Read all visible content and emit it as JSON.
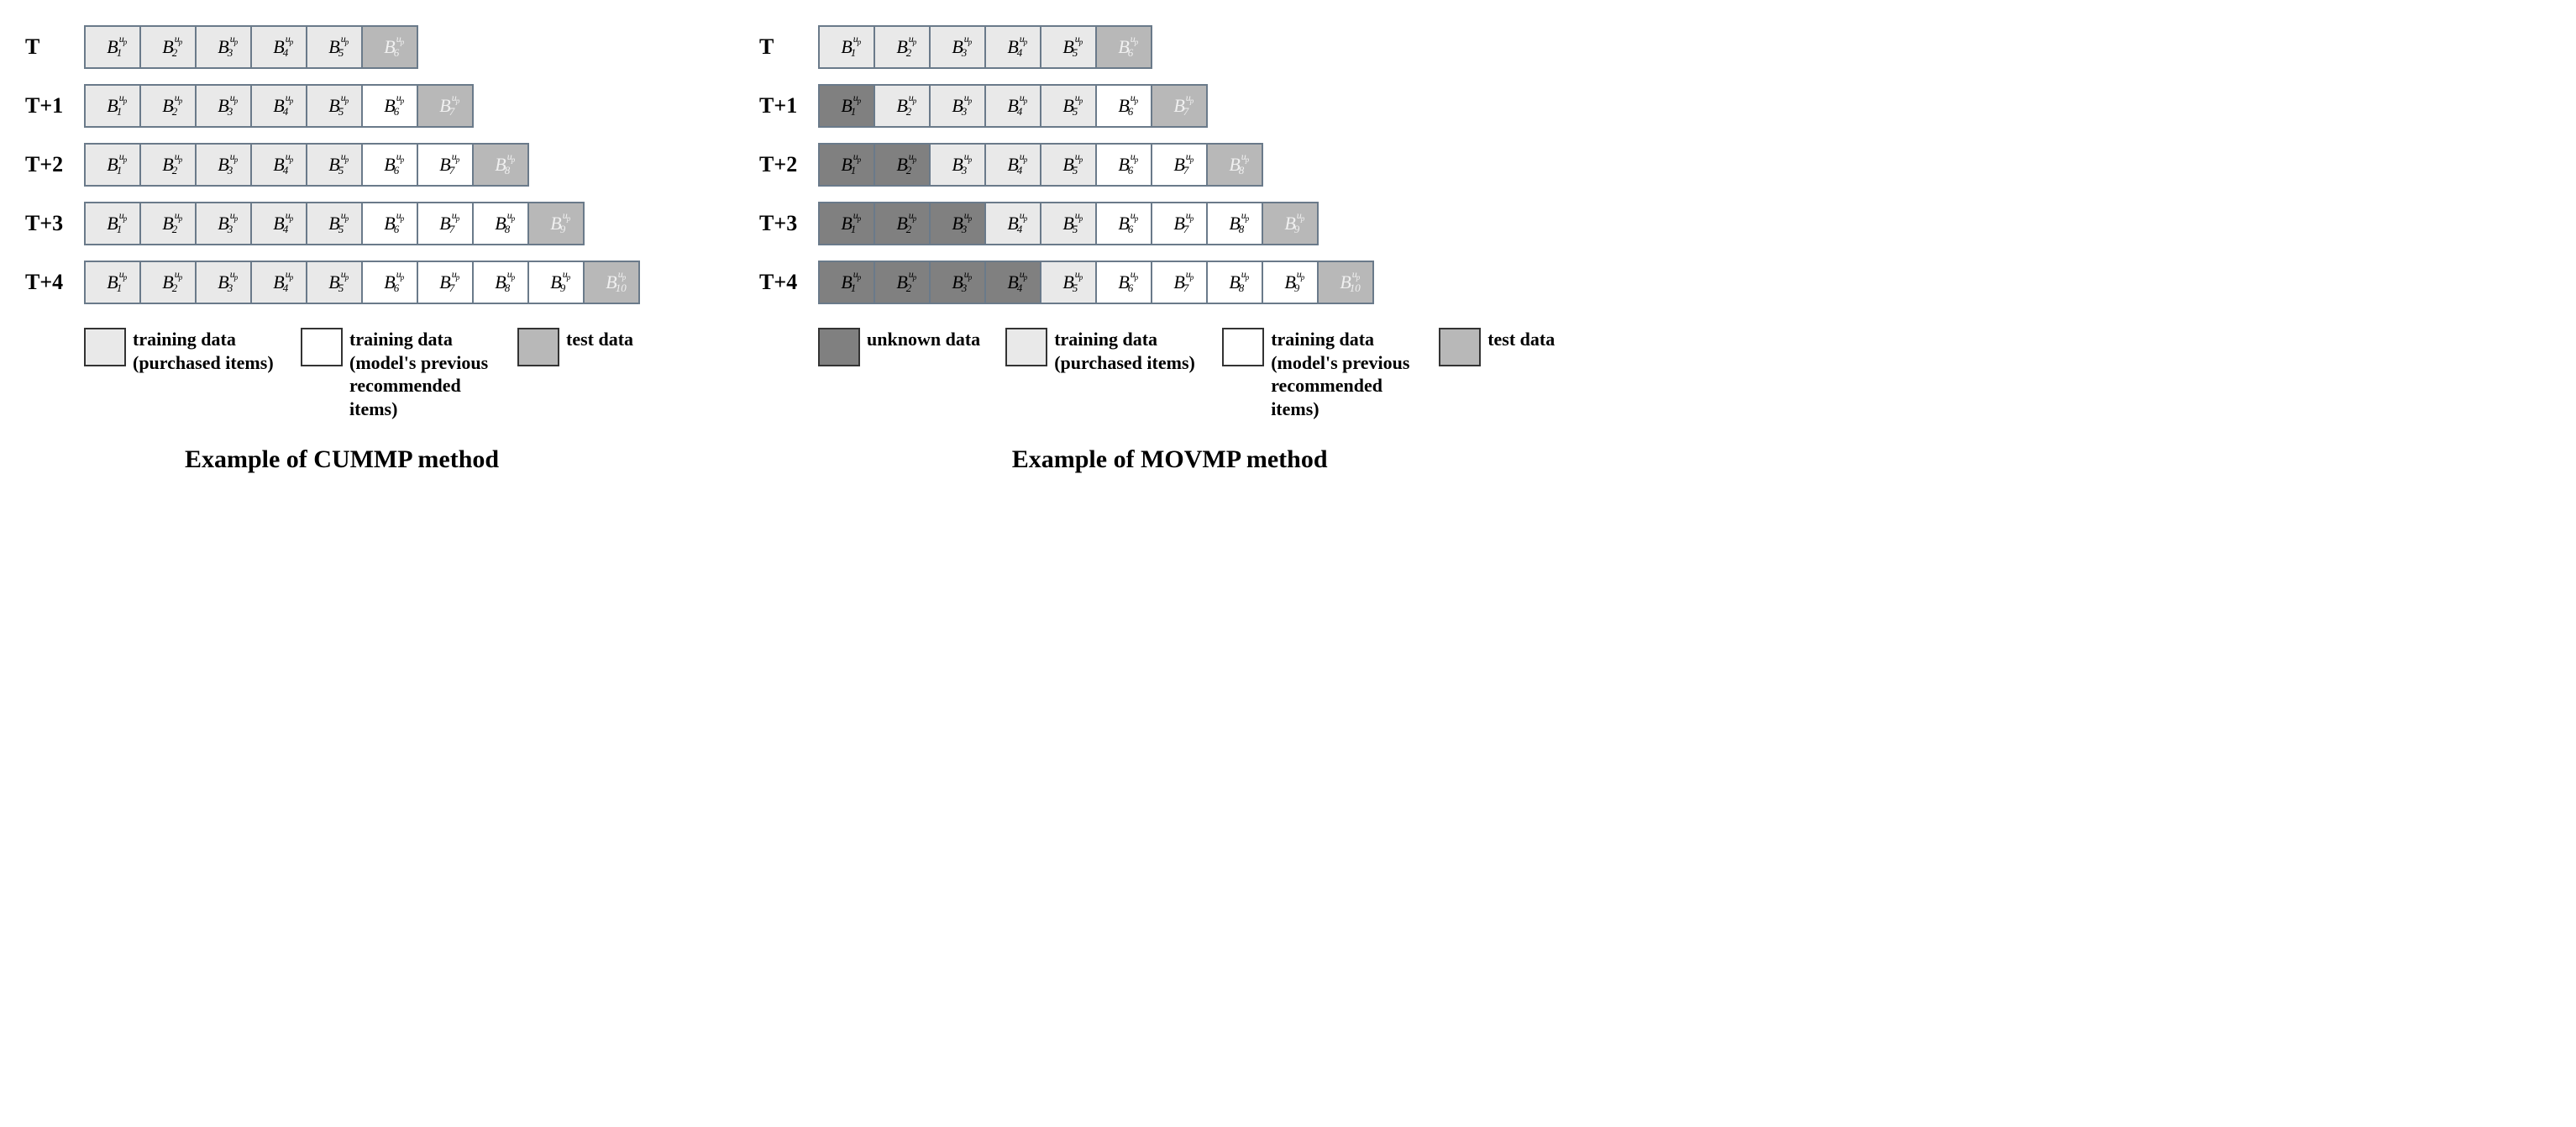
{
  "superscript": "u_p",
  "colors": {
    "purchased": "#e9e9e9",
    "recommended": "#ffffff",
    "test": "#b8b8b8",
    "unknown": "#808080",
    "border": "#6a7a8a",
    "legend_border": "#333333",
    "text_dark": "#000000",
    "text_light": "#f0f0f0"
  },
  "row_labels": [
    "T",
    "T+1",
    "T+2",
    "T+3",
    "T+4"
  ],
  "cummp": {
    "title": "Example of CUMMP method",
    "rows": [
      {
        "cells": [
          {
            "sub": "1",
            "type": "purchased"
          },
          {
            "sub": "2",
            "type": "purchased"
          },
          {
            "sub": "3",
            "type": "purchased"
          },
          {
            "sub": "4",
            "type": "purchased"
          },
          {
            "sub": "5",
            "type": "purchased"
          },
          {
            "sub": "6",
            "type": "test"
          }
        ]
      },
      {
        "cells": [
          {
            "sub": "1",
            "type": "purchased"
          },
          {
            "sub": "2",
            "type": "purchased"
          },
          {
            "sub": "3",
            "type": "purchased"
          },
          {
            "sub": "4",
            "type": "purchased"
          },
          {
            "sub": "5",
            "type": "purchased"
          },
          {
            "sub": "6",
            "type": "recommended"
          },
          {
            "sub": "7",
            "type": "test"
          }
        ]
      },
      {
        "cells": [
          {
            "sub": "1",
            "type": "purchased"
          },
          {
            "sub": "2",
            "type": "purchased"
          },
          {
            "sub": "3",
            "type": "purchased"
          },
          {
            "sub": "4",
            "type": "purchased"
          },
          {
            "sub": "5",
            "type": "purchased"
          },
          {
            "sub": "6",
            "type": "recommended"
          },
          {
            "sub": "7",
            "type": "recommended"
          },
          {
            "sub": "8",
            "type": "test"
          }
        ]
      },
      {
        "cells": [
          {
            "sub": "1",
            "type": "purchased"
          },
          {
            "sub": "2",
            "type": "purchased"
          },
          {
            "sub": "3",
            "type": "purchased"
          },
          {
            "sub": "4",
            "type": "purchased"
          },
          {
            "sub": "5",
            "type": "purchased"
          },
          {
            "sub": "6",
            "type": "recommended"
          },
          {
            "sub": "7",
            "type": "recommended"
          },
          {
            "sub": "8",
            "type": "recommended"
          },
          {
            "sub": "9",
            "type": "test"
          }
        ]
      },
      {
        "cells": [
          {
            "sub": "1",
            "type": "purchased"
          },
          {
            "sub": "2",
            "type": "purchased"
          },
          {
            "sub": "3",
            "type": "purchased"
          },
          {
            "sub": "4",
            "type": "purchased"
          },
          {
            "sub": "5",
            "type": "purchased"
          },
          {
            "sub": "6",
            "type": "recommended"
          },
          {
            "sub": "7",
            "type": "recommended"
          },
          {
            "sub": "8",
            "type": "recommended"
          },
          {
            "sub": "9",
            "type": "recommended"
          },
          {
            "sub": "10",
            "type": "test"
          }
        ]
      }
    ],
    "legend": [
      {
        "type": "purchased",
        "label": "training data (purchased items)"
      },
      {
        "type": "recommended",
        "label": "training data (model's previous recommended items)"
      },
      {
        "type": "test",
        "label": "test data"
      }
    ]
  },
  "movmp": {
    "title": "Example of MOVMP method",
    "rows": [
      {
        "cells": [
          {
            "sub": "1",
            "type": "purchased"
          },
          {
            "sub": "2",
            "type": "purchased"
          },
          {
            "sub": "3",
            "type": "purchased"
          },
          {
            "sub": "4",
            "type": "purchased"
          },
          {
            "sub": "5",
            "type": "purchased"
          },
          {
            "sub": "6",
            "type": "test"
          }
        ]
      },
      {
        "cells": [
          {
            "sub": "1",
            "type": "unknown"
          },
          {
            "sub": "2",
            "type": "purchased"
          },
          {
            "sub": "3",
            "type": "purchased"
          },
          {
            "sub": "4",
            "type": "purchased"
          },
          {
            "sub": "5",
            "type": "purchased"
          },
          {
            "sub": "6",
            "type": "recommended"
          },
          {
            "sub": "7",
            "type": "test"
          }
        ]
      },
      {
        "cells": [
          {
            "sub": "1",
            "type": "unknown"
          },
          {
            "sub": "2",
            "type": "unknown"
          },
          {
            "sub": "3",
            "type": "purchased"
          },
          {
            "sub": "4",
            "type": "purchased"
          },
          {
            "sub": "5",
            "type": "purchased"
          },
          {
            "sub": "6",
            "type": "recommended"
          },
          {
            "sub": "7",
            "type": "recommended"
          },
          {
            "sub": "8",
            "type": "test"
          }
        ]
      },
      {
        "cells": [
          {
            "sub": "1",
            "type": "unknown"
          },
          {
            "sub": "2",
            "type": "unknown"
          },
          {
            "sub": "3",
            "type": "unknown"
          },
          {
            "sub": "4",
            "type": "purchased"
          },
          {
            "sub": "5",
            "type": "purchased"
          },
          {
            "sub": "6",
            "type": "recommended"
          },
          {
            "sub": "7",
            "type": "recommended"
          },
          {
            "sub": "8",
            "type": "recommended"
          },
          {
            "sub": "9",
            "type": "test"
          }
        ]
      },
      {
        "cells": [
          {
            "sub": "1",
            "type": "unknown"
          },
          {
            "sub": "2",
            "type": "unknown"
          },
          {
            "sub": "3",
            "type": "unknown"
          },
          {
            "sub": "4",
            "type": "unknown"
          },
          {
            "sub": "5",
            "type": "purchased"
          },
          {
            "sub": "6",
            "type": "recommended"
          },
          {
            "sub": "7",
            "type": "recommended"
          },
          {
            "sub": "8",
            "type": "recommended"
          },
          {
            "sub": "9",
            "type": "recommended"
          },
          {
            "sub": "10",
            "type": "test"
          }
        ]
      }
    ],
    "legend": [
      {
        "type": "unknown",
        "label": "unknown data"
      },
      {
        "type": "purchased",
        "label": "training data (purchased items)"
      },
      {
        "type": "recommended",
        "label": "training data (model's previous recommended items)"
      },
      {
        "type": "test",
        "label": "test data"
      }
    ]
  }
}
